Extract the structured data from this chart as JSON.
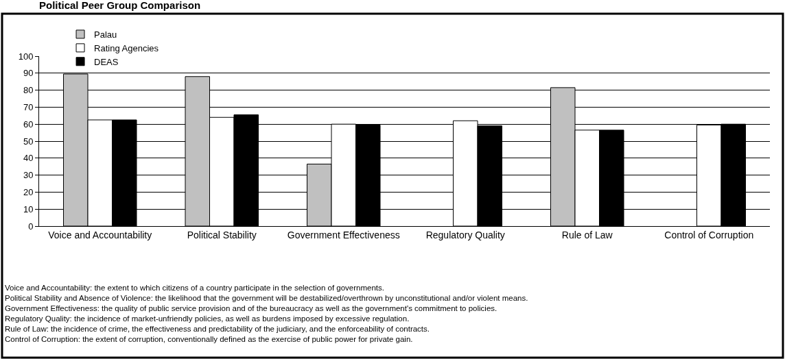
{
  "chart_data": {
    "type": "bar",
    "title": "Political Peer Group Comparison",
    "categories": [
      "Voice and Accountability",
      "Political Stability",
      "Government Effectiveness",
      "Regulatory Quality",
      "Rule of Law",
      "Control of Corruption"
    ],
    "series": [
      {
        "name": "Palau",
        "color": "#c0c0c0",
        "values": [
          89.5,
          88,
          36.5,
          null,
          81.5,
          null
        ]
      },
      {
        "name": "Rating Agencies",
        "color": "#ffffff",
        "values": [
          62.5,
          64,
          60,
          62,
          56.5,
          59.5
        ]
      },
      {
        "name": "DEAS",
        "color": "#000000",
        "values": [
          62.5,
          65.5,
          59.5,
          59,
          56.5,
          60
        ]
      }
    ],
    "ylim": [
      0,
      100
    ],
    "yticks": [
      0,
      10,
      20,
      30,
      40,
      50,
      60,
      70,
      80,
      90,
      100
    ],
    "grid": "y",
    "legend": "top",
    "annotations": [
      "Voice and Accountability: the extent to which citizens of a country participate in the selection of governments.",
      "Political Stability and Absence of Violence: the likelihood that the government will be destabilized/overthrown by unconstitutional and/or violent means.",
      "Government Effectiveness: the quality of public service provision and of the bureaucracy as well as the government's commitment to policies.",
      "Regulatory Quality: the incidence of market-unfriendly policies, as well as burdens imposed by excessive regulation.",
      "Rule of Law: the incidence of crime, the effectiveness and predictability of the judiciary, and the enforceability of contracts.",
      "Control of Corruption: the extent of corruption, conventionally defined as the exercise of public power for private gain."
    ]
  }
}
